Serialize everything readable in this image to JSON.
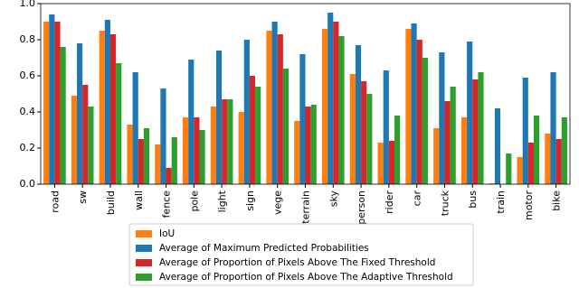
{
  "chart_data": {
    "type": "bar",
    "categories": [
      "road",
      "sw",
      "build",
      "wall",
      "fence",
      "pole",
      "light",
      "sign",
      "vege",
      "terrain",
      "sky",
      "person",
      "rider",
      "car",
      "truck",
      "bus",
      "train",
      "motor",
      "bike"
    ],
    "series": [
      {
        "name": "IoU",
        "color": "#ff7f0e",
        "values": [
          0.9,
          0.49,
          0.85,
          0.33,
          0.22,
          0.37,
          0.43,
          0.4,
          0.85,
          0.35,
          0.86,
          0.61,
          0.23,
          0.86,
          0.31,
          0.37,
          0.005,
          0.15,
          0.28
        ]
      },
      {
        "name": "Average of Maximum Predicted Probabilities",
        "color": "#1f77b4",
        "values": [
          0.94,
          0.78,
          0.91,
          0.62,
          0.53,
          0.69,
          0.74,
          0.8,
          0.9,
          0.72,
          0.95,
          0.77,
          0.63,
          0.89,
          0.73,
          0.79,
          0.42,
          0.59,
          0.62
        ]
      },
      {
        "name": "Average of Proportion of Pixels Above The Fixed Threshold",
        "color": "#d62728",
        "values": [
          0.9,
          0.55,
          0.83,
          0.25,
          0.09,
          0.37,
          0.47,
          0.6,
          0.83,
          0.43,
          0.9,
          0.57,
          0.24,
          0.8,
          0.46,
          0.58,
          0.0,
          0.23,
          0.25
        ]
      },
      {
        "name": "Average of Proportion of Pixels Above The Adaptive Threshold",
        "color": "#2ca02c",
        "values": [
          0.76,
          0.43,
          0.67,
          0.31,
          0.26,
          0.3,
          0.47,
          0.54,
          0.64,
          0.44,
          0.82,
          0.5,
          0.38,
          0.7,
          0.54,
          0.62,
          0.17,
          0.38,
          0.37
        ]
      }
    ],
    "ylim": [
      0,
      1.0
    ],
    "yticks": [
      {
        "value": 0,
        "label": "0.0"
      },
      0.2,
      0.4,
      0.6,
      0.8,
      {
        "value": 1.0,
        "label": "1.0"
      }
    ]
  }
}
